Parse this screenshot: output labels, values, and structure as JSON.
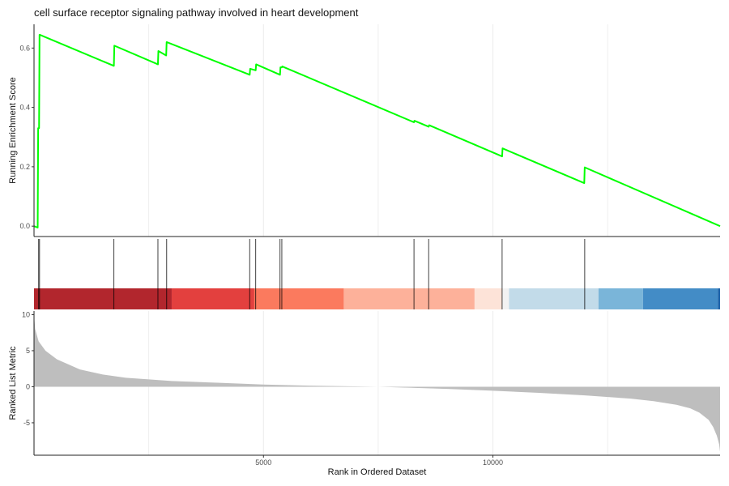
{
  "chart_data": {
    "type": "line",
    "title": "cell surface receptor signaling pathway involved in heart development",
    "xlabel": "Rank in Ordered Dataset",
    "x_ticks": [
      5000,
      10000
    ],
    "x_tick_labels": [
      "5000",
      "10000"
    ],
    "xlim": [
      0,
      14950
    ],
    "grid": "vertical-only",
    "panels": {
      "running_score": {
        "ylabel": "Running Enrichment Score",
        "ylim": [
          -0.035,
          0.68
        ],
        "y_ticks": [
          0.0,
          0.2,
          0.4,
          0.6
        ],
        "y_tick_labels": [
          "0.0",
          "0.2",
          "0.4",
          "0.6"
        ],
        "line_color": "#00ff00",
        "series": [
          {
            "x": [
              0,
              80,
              90,
              110,
              120,
              1740,
              1750,
              2700,
              2710,
              2880,
              2890,
              4700,
              4710,
              4830,
              4840,
              5360,
              5370,
              5400,
              5410,
              8280,
              8290,
              8600,
              8610,
              10200,
              10210,
              11990,
              12000,
              14950
            ],
            "y": [
              0.0,
              -0.005,
              0.33,
              0.33,
              0.645,
              0.54,
              0.608,
              0.545,
              0.59,
              0.575,
              0.62,
              0.51,
              0.53,
              0.525,
              0.545,
              0.51,
              0.535,
              0.535,
              0.538,
              0.35,
              0.355,
              0.335,
              0.34,
              0.235,
              0.262,
              0.145,
              0.198,
              0.0
            ]
          }
        ]
      },
      "hits": {
        "positions": [
          100,
          120,
          1740,
          2700,
          2890,
          4700,
          4830,
          5360,
          5400,
          8280,
          8600,
          10200,
          12000
        ],
        "color": "#000000"
      },
      "rank_colorbar": {
        "bands": [
          {
            "start": 0,
            "end": 3000,
            "color": "#b2262d"
          },
          {
            "start": 3000,
            "end": 4800,
            "color": "#e3403e"
          },
          {
            "start": 4800,
            "end": 6750,
            "color": "#fb7a5e"
          },
          {
            "start": 6750,
            "end": 9600,
            "color": "#fdb19a"
          },
          {
            "start": 9600,
            "end": 10200,
            "color": "#fde3d8"
          },
          {
            "start": 10200,
            "end": 10350,
            "color": "#f2f2f2"
          },
          {
            "start": 10350,
            "end": 12300,
            "color": "#c2dbe9"
          },
          {
            "start": 12300,
            "end": 13270,
            "color": "#7ab5d9"
          },
          {
            "start": 13270,
            "end": 14900,
            "color": "#438cc6"
          },
          {
            "start": 14900,
            "end": 14950,
            "color": "#2166ac"
          }
        ]
      },
      "ranked_metric": {
        "ylabel": "Ranked List Metric",
        "ylim": [
          -9.5,
          10.5
        ],
        "y_ticks": [
          -5,
          0,
          5,
          10
        ],
        "y_tick_labels": [
          "-5",
          "0",
          "5",
          "10"
        ],
        "fill_color": "#bebebe",
        "series": [
          {
            "x": [
              0,
              25,
              100,
              250,
              500,
              1000,
              1500,
              2000,
              3000,
              4000,
              5000,
              6000,
              7000,
              7500,
              8000,
              9000,
              10000,
              11000,
              12000,
              13000,
              13500,
              14000,
              14300,
              14500,
              14700,
              14800,
              14880,
              14930,
              14950
            ],
            "y": [
              10.0,
              8.0,
              6.3,
              5.0,
              3.8,
              2.4,
              1.7,
              1.25,
              0.8,
              0.55,
              0.3,
              0.15,
              0.05,
              0.0,
              -0.1,
              -0.3,
              -0.55,
              -0.85,
              -1.2,
              -1.65,
              -2.0,
              -2.5,
              -3.0,
              -3.6,
              -4.6,
              -5.6,
              -6.8,
              -8.0,
              -9.0
            ]
          }
        ]
      }
    }
  }
}
